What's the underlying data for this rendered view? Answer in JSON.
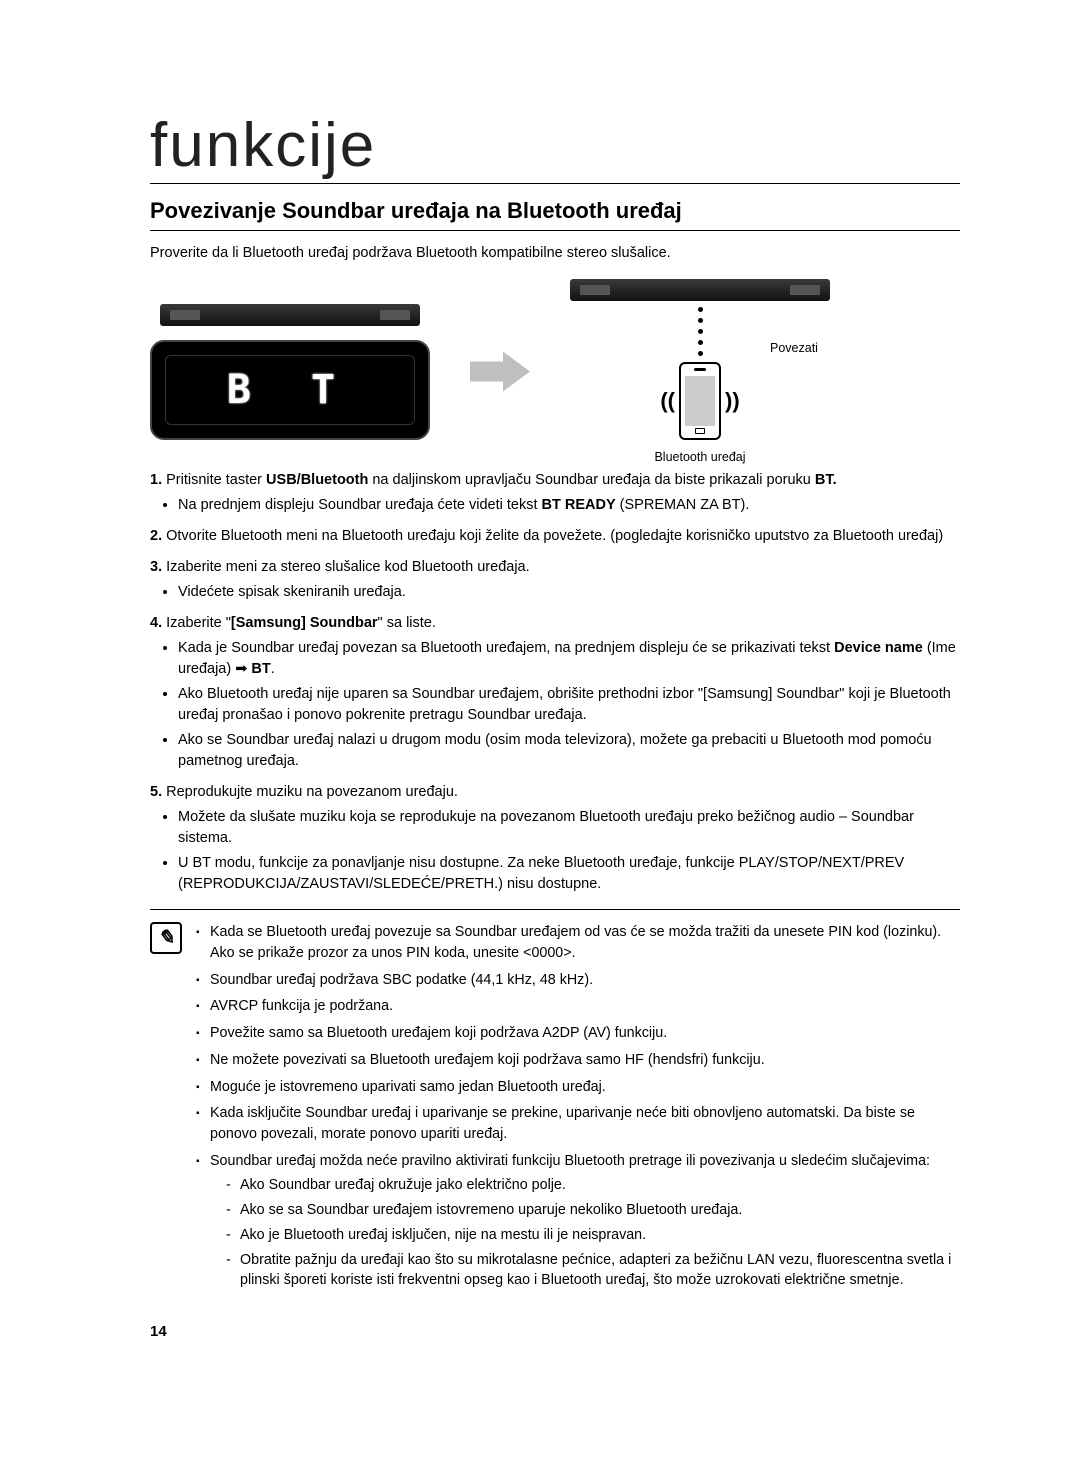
{
  "chapter_title": "funkcije",
  "section_title": "Povezivanje Soundbar uređaja na Bluetooth uređaj",
  "intro": "Proverite da li Bluetooth uređaj podržava Bluetooth kompatibilne stereo slušalice.",
  "diagram": {
    "bt_display_text": "B T",
    "connect_label": "Povezati",
    "bt_device_label": "Bluetooth uređaj"
  },
  "steps": [
    {
      "num": "1.",
      "text_before": "Pritisnite taster ",
      "bold1": "USB/Bluetooth",
      "text_mid": " na daljinskom upravljaču Soundbar uređaja da biste prikazali poruku ",
      "bold2": "BT.",
      "bullets": [
        {
          "pre": "Na prednjem displeju Soundbar uređaja ćete videti tekst ",
          "bold": "BT READY",
          "post": " (SPREMAN ZA BT)."
        }
      ]
    },
    {
      "num": "2.",
      "text": "Otvorite Bluetooth meni na Bluetooth uređaju koji želite da povežete. (pogledajte korisničko uputstvo za Bluetooth uređaj)"
    },
    {
      "num": "3.",
      "text": "Izaberite meni za stereo slušalice kod Bluetooth uređaja.",
      "bullets": [
        {
          "text": "Videćete spisak skeniranih uređaja."
        }
      ]
    },
    {
      "num": "4.",
      "num_bold": true,
      "text_before": "Izaberite \"",
      "bold1": "[Samsung] Soundbar",
      "text_after": "\" sa liste.",
      "bullets": [
        {
          "pre": "Kada je Soundbar uređaj povezan sa Bluetooth uređajem, na prednjem displeju će se prikazivati tekst ",
          "bold": "Device name",
          "mid": " (Ime uređaja) ➡ ",
          "bold2": "BT",
          "post": "."
        },
        {
          "text": "Ako Bluetooth uređaj nije uparen sa Soundbar uređajem, obrišite prethodni izbor \"[Samsung] Soundbar\" koji je Bluetooth uređaj pronašao i ponovo pokrenite pretragu Soundbar uređaja."
        },
        {
          "text": "Ako se Soundbar uređaj nalazi u drugom modu (osim moda televizora), možete ga prebaciti u Bluetooth mod pomoću pametnog uređaja."
        }
      ]
    },
    {
      "num": "5.",
      "num_bold": true,
      "text": "Reprodukujte muziku na povezanom uređaju.",
      "bullets": [
        {
          "text": "Možete da slušate muziku koja se reprodukuje na povezanom Bluetooth uređaju preko bežičnog audio – Soundbar sistema."
        },
        {
          "text": "U BT modu, funkcije za ponavljanje nisu dostupne. Za neke Bluetooth uređaje, funkcije PLAY/STOP/NEXT/PREV (REPRODUKCIJA/ZAUSTAVI/SLEDEĆE/PRETH.) nisu dostupne."
        }
      ]
    }
  ],
  "notes": [
    "Kada se Bluetooth uređaj povezuje sa Soundbar uređajem od vas će se možda tražiti da unesete PIN kod (lozinku). Ako se prikaže prozor za unos PIN koda, unesite <0000>.",
    "Soundbar uređaj podržava SBC podatke (44,1 kHz, 48 kHz).",
    "AVRCP funkcija je podržana.",
    "Povežite samo sa Bluetooth uređajem koji podržava A2DP (AV) funkciju.",
    "Ne možete povezivati sa Bluetooth uređajem koji podržava samo HF (hendsfri) funkciju.",
    "Moguće je istovremeno uparivati samo jedan Bluetooth uređaj.",
    "Kada isključite Soundbar uređaj i uparivanje se prekine, uparivanje neće biti obnovljeno automatski. Da biste se ponovo povezali, morate ponovo upariti uređaj."
  ],
  "note_with_sub": {
    "text": "Soundbar uređaj možda neće pravilno aktivirati funkciju Bluetooth pretrage ili povezivanja u sledećim slučajevima:",
    "sub": [
      "Ako Soundbar uređaj okružuje jako električno polje.",
      "Ako se sa Soundbar uređajem istovremeno uparuje nekoliko Bluetooth uređaja.",
      "Ako je Bluetooth uređaj isključen, nije na mestu ili je neispravan.",
      "Obratite pažnju da uređaji kao što su mikrotalasne pećnice, adapteri za bežičnu LAN vezu, fluorescentna svetla i plinski šporeti koriste isti frekventni opseg kao i Bluetooth uređaj, što može uzrokovati električne smetnje."
    ]
  },
  "page_number": "14"
}
